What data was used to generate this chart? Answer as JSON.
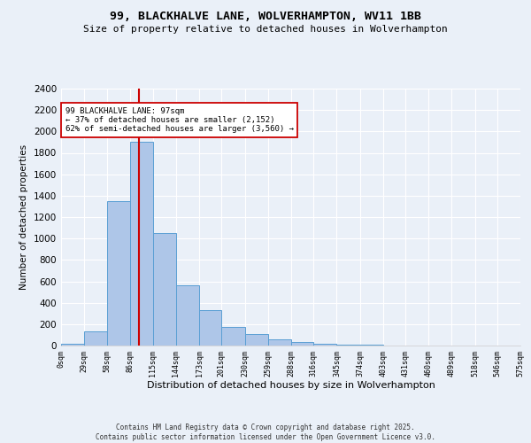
{
  "title1": "99, BLACKHALVE LANE, WOLVERHAMPTON, WV11 1BB",
  "title2": "Size of property relative to detached houses in Wolverhampton",
  "xlabel": "Distribution of detached houses by size in Wolverhampton",
  "ylabel": "Number of detached properties",
  "bin_edges": [
    0,
    29,
    58,
    86,
    115,
    144,
    173,
    201,
    230,
    259,
    288,
    316,
    345,
    374,
    403,
    431,
    460,
    489,
    518,
    546,
    575
  ],
  "bin_labels": [
    "0sqm",
    "29sqm",
    "58sqm",
    "86sqm",
    "115sqm",
    "144sqm",
    "173sqm",
    "201sqm",
    "230sqm",
    "259sqm",
    "288sqm",
    "316sqm",
    "345sqm",
    "374sqm",
    "403sqm",
    "431sqm",
    "460sqm",
    "489sqm",
    "518sqm",
    "546sqm",
    "575sqm"
  ],
  "counts": [
    15,
    130,
    1350,
    1900,
    1050,
    560,
    335,
    170,
    110,
    60,
    35,
    20,
    10,
    5,
    3,
    2,
    2,
    1,
    1,
    1
  ],
  "bar_color": "#aec6e8",
  "bar_edge_color": "#5a9fd4",
  "vline_x": 97,
  "vline_color": "#cc0000",
  "annotation_text": "99 BLACKHALVE LANE: 97sqm\n← 37% of detached houses are smaller (2,152)\n62% of semi-detached houses are larger (3,560) →",
  "annotation_box_color": "#ffffff",
  "annotation_box_edge": "#cc0000",
  "ylim": [
    0,
    2400
  ],
  "yticks": [
    0,
    200,
    400,
    600,
    800,
    1000,
    1200,
    1400,
    1600,
    1800,
    2000,
    2200,
    2400
  ],
  "bg_color": "#eaf0f8",
  "grid_color": "#ffffff",
  "footer1": "Contains HM Land Registry data © Crown copyright and database right 2025.",
  "footer2": "Contains public sector information licensed under the Open Government Licence v3.0."
}
